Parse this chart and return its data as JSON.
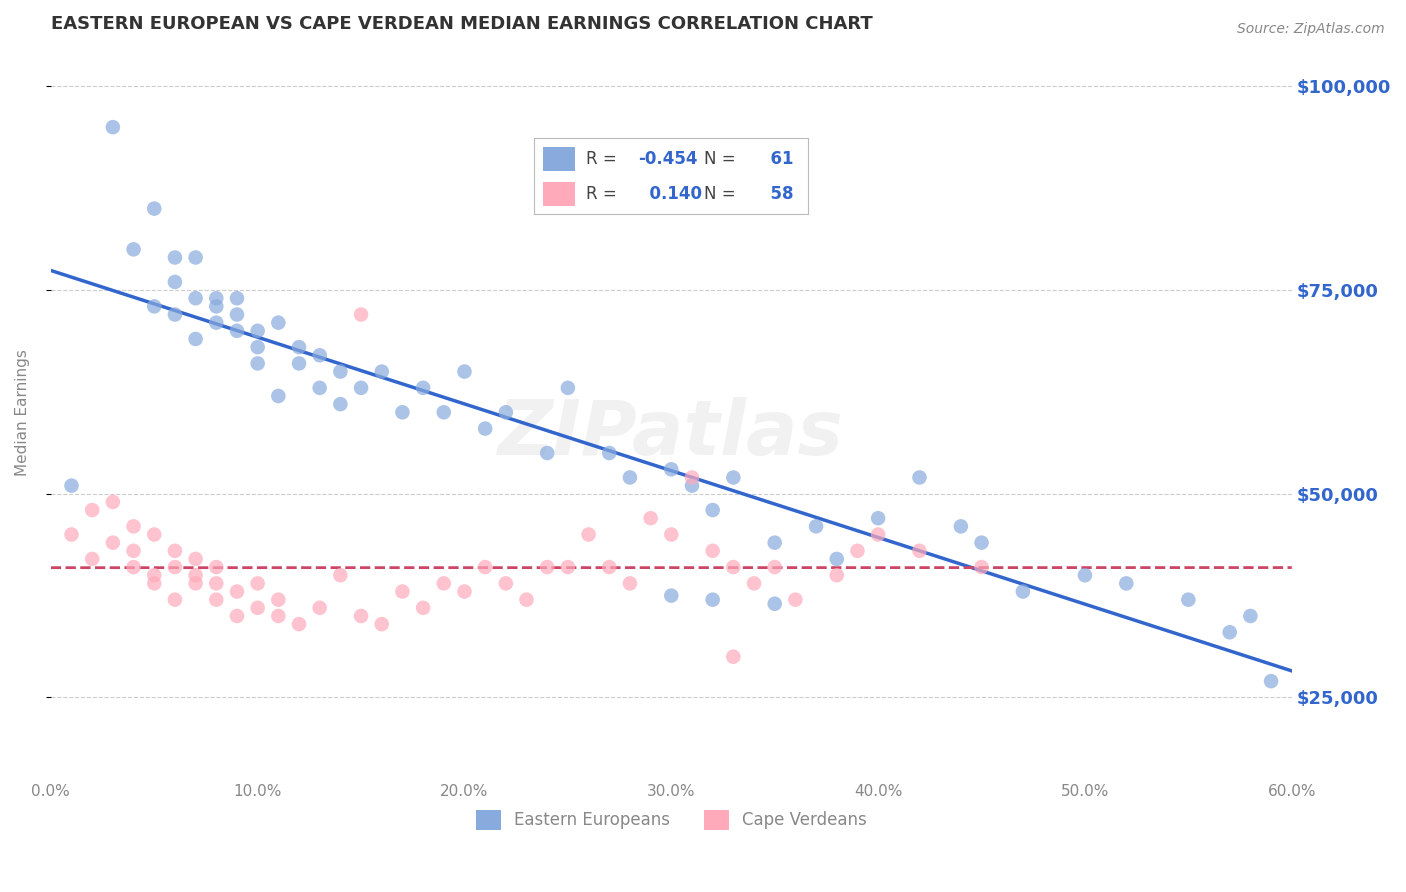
{
  "title": "EASTERN EUROPEAN VS CAPE VERDEAN MEDIAN EARNINGS CORRELATION CHART",
  "source": "Source: ZipAtlas.com",
  "ylabel": "Median Earnings",
  "xmin": 0.0,
  "xmax": 0.6,
  "ymin": 15000,
  "ymax": 105000,
  "yticks": [
    25000,
    50000,
    75000,
    100000
  ],
  "ytick_labels": [
    "$25,000",
    "$50,000",
    "$75,000",
    "$100,000"
  ],
  "blue_R": -0.454,
  "blue_N": 61,
  "pink_R": 0.14,
  "pink_N": 58,
  "blue_color": "#88aadd",
  "pink_color": "#ffaabb",
  "blue_line_color": "#3366cc",
  "pink_line_color": "#cc4466",
  "title_color": "#333333",
  "axis_label_color": "#3366cc",
  "tick_color": "#888888",
  "grid_color": "#cccccc",
  "background_color": "#ffffff",
  "watermark": "ZIPatlas",
  "blue_scatter_x": [
    0.01,
    0.03,
    0.04,
    0.05,
    0.05,
    0.06,
    0.06,
    0.06,
    0.07,
    0.07,
    0.07,
    0.08,
    0.08,
    0.08,
    0.09,
    0.09,
    0.09,
    0.1,
    0.1,
    0.1,
    0.11,
    0.11,
    0.12,
    0.12,
    0.13,
    0.13,
    0.14,
    0.14,
    0.15,
    0.16,
    0.17,
    0.18,
    0.19,
    0.2,
    0.21,
    0.22,
    0.24,
    0.25,
    0.27,
    0.28,
    0.3,
    0.31,
    0.32,
    0.33,
    0.35,
    0.37,
    0.38,
    0.4,
    0.42,
    0.44,
    0.45,
    0.47,
    0.5,
    0.52,
    0.55,
    0.57,
    0.58,
    0.59,
    0.3,
    0.32,
    0.35
  ],
  "blue_scatter_y": [
    51000,
    95000,
    80000,
    85000,
    73000,
    79000,
    72000,
    76000,
    79000,
    74000,
    69000,
    73000,
    71000,
    74000,
    70000,
    72000,
    74000,
    70000,
    66000,
    68000,
    71000,
    62000,
    68000,
    66000,
    67000,
    63000,
    65000,
    61000,
    63000,
    65000,
    60000,
    63000,
    60000,
    65000,
    58000,
    60000,
    55000,
    63000,
    55000,
    52000,
    53000,
    51000,
    48000,
    52000,
    44000,
    46000,
    42000,
    47000,
    52000,
    46000,
    44000,
    38000,
    40000,
    39000,
    37000,
    33000,
    35000,
    27000,
    37500,
    37000,
    36500
  ],
  "pink_scatter_x": [
    0.01,
    0.02,
    0.02,
    0.03,
    0.03,
    0.04,
    0.04,
    0.04,
    0.05,
    0.05,
    0.05,
    0.06,
    0.06,
    0.06,
    0.07,
    0.07,
    0.07,
    0.08,
    0.08,
    0.08,
    0.09,
    0.09,
    0.1,
    0.1,
    0.11,
    0.11,
    0.12,
    0.13,
    0.14,
    0.15,
    0.15,
    0.16,
    0.17,
    0.18,
    0.19,
    0.2,
    0.21,
    0.22,
    0.23,
    0.24,
    0.25,
    0.26,
    0.27,
    0.28,
    0.29,
    0.3,
    0.31,
    0.32,
    0.33,
    0.34,
    0.35,
    0.36,
    0.38,
    0.39,
    0.4,
    0.42,
    0.45,
    0.33
  ],
  "pink_scatter_y": [
    45000,
    48000,
    42000,
    44000,
    49000,
    43000,
    41000,
    46000,
    40000,
    45000,
    39000,
    41000,
    43000,
    37000,
    40000,
    42000,
    39000,
    37000,
    39000,
    41000,
    35000,
    38000,
    36000,
    39000,
    35000,
    37000,
    34000,
    36000,
    40000,
    35000,
    72000,
    34000,
    38000,
    36000,
    39000,
    38000,
    41000,
    39000,
    37000,
    41000,
    41000,
    45000,
    41000,
    39000,
    47000,
    45000,
    52000,
    43000,
    41000,
    39000,
    41000,
    37000,
    40000,
    43000,
    45000,
    43000,
    41000,
    30000
  ]
}
